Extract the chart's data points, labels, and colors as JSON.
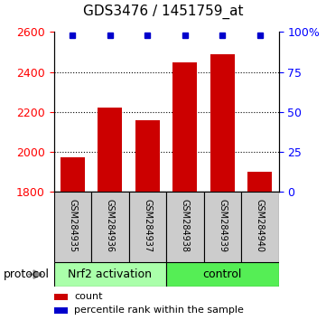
{
  "title": "GDS3476 / 1451759_at",
  "samples": [
    "GSM284935",
    "GSM284936",
    "GSM284937",
    "GSM284938",
    "GSM284939",
    "GSM284940"
  ],
  "counts": [
    1975,
    2220,
    2160,
    2450,
    2490,
    1900
  ],
  "percentile_ranks": [
    98,
    98,
    98,
    98,
    98,
    98
  ],
  "bar_color": "#cc0000",
  "dot_color": "#0000cc",
  "ylim_left": [
    1800,
    2600
  ],
  "ylim_right": [
    0,
    100
  ],
  "yticks_left": [
    1800,
    2000,
    2200,
    2400,
    2600
  ],
  "yticks_right": [
    0,
    25,
    50,
    75,
    100
  ],
  "grid_values": [
    2000,
    2200,
    2400
  ],
  "left_tick_color": "red",
  "right_tick_color": "blue",
  "bg_color": "#ffffff",
  "sample_box_color": "#cccccc",
  "group1_color": "#aaffaa",
  "group2_color": "#55ee55",
  "protocol_label": "protocol",
  "legend_count": "count",
  "legend_pct": "percentile rank within the sample",
  "bar_width": 0.65,
  "title_fontsize": 11,
  "tick_fontsize": 9,
  "sample_fontsize": 7,
  "group_fontsize": 9,
  "legend_fontsize": 8
}
